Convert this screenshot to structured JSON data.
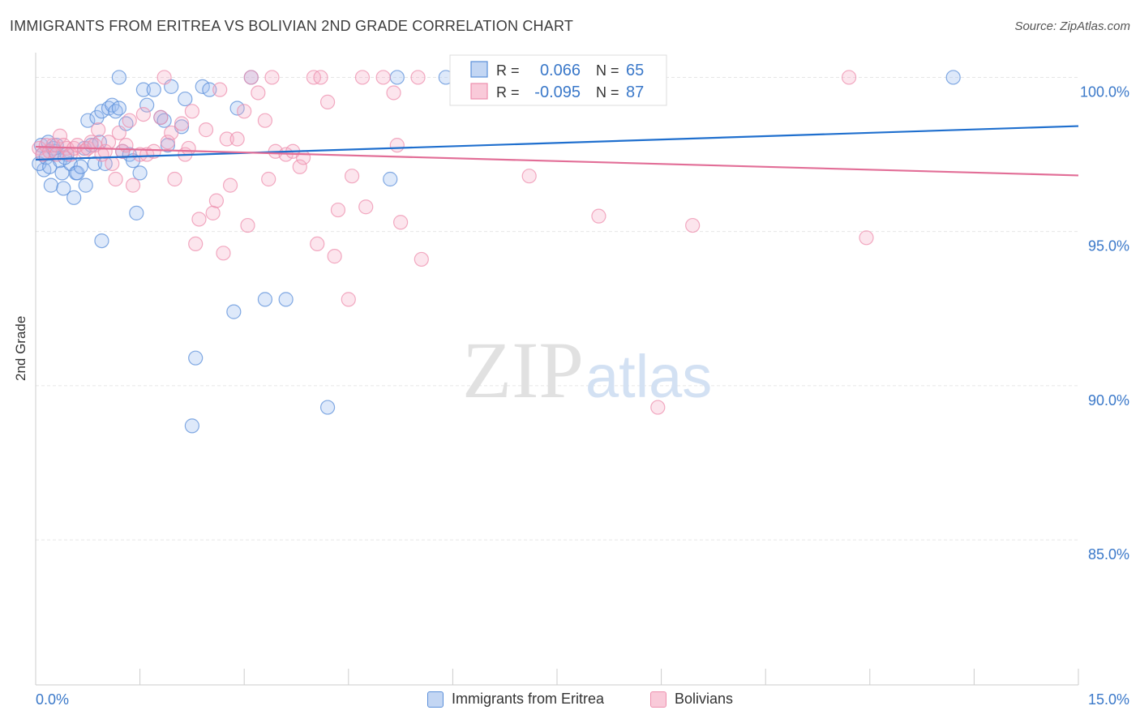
{
  "header": {
    "title": "IMMIGRANTS FROM ERITREA VS BOLIVIAN 2ND GRADE CORRELATION CHART",
    "source": "Source: ZipAtlas.com"
  },
  "watermark": {
    "zip": "ZIP",
    "atlas": "atlas"
  },
  "colors": {
    "blue": "#5b8fd9",
    "blue_line": "#1f6fce",
    "pink": "#ee8fae",
    "pink_line": "#e26e97",
    "axis_text": "#3a78c9"
  },
  "chart_data": {
    "type": "scatter",
    "xlabel": "",
    "ylabel": "2nd Grade",
    "xlim": [
      0,
      15
    ],
    "ylim": [
      80.3,
      100.8
    ],
    "x_ticks": [
      "0.0%",
      "15.0%"
    ],
    "y_ticks": [
      {
        "value": 100,
        "label": "100.0%"
      },
      {
        "value": 95,
        "label": "95.0%"
      },
      {
        "value": 90,
        "label": "90.0%"
      },
      {
        "value": 85,
        "label": "85.0%"
      }
    ],
    "grid": true,
    "legend_top": {
      "rows": [
        {
          "r_label": "R =",
          "r_value": "0.066",
          "n_label": "N =",
          "n_value": "65"
        },
        {
          "r_label": "R =",
          "r_value": "-0.095",
          "n_label": "N =",
          "n_value": "87"
        }
      ]
    },
    "series": [
      {
        "name": "Immigrants from Eritrea",
        "color": "#5b8fd9",
        "trend": {
          "x": [
            0,
            15
          ],
          "y": [
            97.33,
            98.42
          ]
        },
        "points": [
          [
            0.08,
            97.8
          ],
          [
            0.1,
            97.5
          ],
          [
            0.12,
            97.0
          ],
          [
            0.05,
            97.2
          ],
          [
            0.15,
            97.4
          ],
          [
            0.18,
            97.9
          ],
          [
            0.2,
            97.1
          ],
          [
            0.22,
            96.5
          ],
          [
            0.25,
            97.7
          ],
          [
            0.28,
            97.6
          ],
          [
            0.3,
            97.8
          ],
          [
            0.35,
            97.3
          ],
          [
            0.38,
            96.9
          ],
          [
            0.4,
            96.4
          ],
          [
            0.45,
            97.5
          ],
          [
            0.5,
            97.2
          ],
          [
            0.55,
            96.1
          ],
          [
            0.58,
            96.9
          ],
          [
            0.6,
            96.9
          ],
          [
            0.65,
            97.1
          ],
          [
            0.7,
            97.7
          ],
          [
            0.72,
            96.5
          ],
          [
            0.75,
            98.6
          ],
          [
            0.8,
            97.8
          ],
          [
            0.85,
            97.2
          ],
          [
            0.88,
            98.7
          ],
          [
            0.92,
            97.9
          ],
          [
            0.95,
            98.9
          ],
          [
            1.0,
            97.2
          ],
          [
            1.05,
            99.0
          ],
          [
            1.1,
            99.1
          ],
          [
            1.15,
            98.9
          ],
          [
            1.2,
            99.0
          ],
          [
            1.25,
            97.6
          ],
          [
            1.3,
            98.5
          ],
          [
            1.35,
            97.5
          ],
          [
            1.4,
            97.3
          ],
          [
            1.45,
            95.6
          ],
          [
            1.5,
            96.9
          ],
          [
            1.55,
            99.6
          ],
          [
            1.6,
            99.1
          ],
          [
            1.7,
            99.6
          ],
          [
            1.8,
            98.7
          ],
          [
            1.85,
            98.6
          ],
          [
            1.9,
            97.8
          ],
          [
            1.95,
            99.7
          ],
          [
            2.1,
            98.4
          ],
          [
            2.15,
            99.3
          ],
          [
            2.3,
            90.9
          ],
          [
            2.4,
            99.7
          ],
          [
            2.5,
            99.6
          ],
          [
            2.9,
            99.0
          ],
          [
            2.85,
            92.4
          ],
          [
            3.3,
            92.8
          ],
          [
            3.6,
            92.8
          ],
          [
            4.2,
            89.3
          ],
          [
            5.1,
            96.7
          ],
          [
            1.2,
            100.0
          ],
          [
            3.1,
            100.0
          ],
          [
            5.2,
            100.0
          ],
          [
            5.9,
            100.0
          ],
          [
            13.2,
            100.0
          ],
          [
            0.95,
            94.7
          ],
          [
            2.25,
            88.7
          ],
          [
            0.42,
            97.4
          ]
        ]
      },
      {
        "name": "Bolivians",
        "color": "#ee8fae",
        "trend": {
          "x": [
            0,
            15
          ],
          "y": [
            97.75,
            96.82
          ]
        },
        "points": [
          [
            0.05,
            97.7
          ],
          [
            0.1,
            97.5
          ],
          [
            0.15,
            97.8
          ],
          [
            0.2,
            97.6
          ],
          [
            0.25,
            97.8
          ],
          [
            0.3,
            97.5
          ],
          [
            0.35,
            98.1
          ],
          [
            0.4,
            97.8
          ],
          [
            0.45,
            97.7
          ],
          [
            0.5,
            97.5
          ],
          [
            0.55,
            97.7
          ],
          [
            0.6,
            97.8
          ],
          [
            0.7,
            97.6
          ],
          [
            0.75,
            97.7
          ],
          [
            0.8,
            97.9
          ],
          [
            0.85,
            97.8
          ],
          [
            0.9,
            98.3
          ],
          [
            0.95,
            97.5
          ],
          [
            1.0,
            97.6
          ],
          [
            1.05,
            97.9
          ],
          [
            1.1,
            97.2
          ],
          [
            1.15,
            96.7
          ],
          [
            1.2,
            98.2
          ],
          [
            1.25,
            97.6
          ],
          [
            1.3,
            97.8
          ],
          [
            1.35,
            98.6
          ],
          [
            1.4,
            96.5
          ],
          [
            1.5,
            97.5
          ],
          [
            1.55,
            98.8
          ],
          [
            1.6,
            97.5
          ],
          [
            1.7,
            97.6
          ],
          [
            1.8,
            98.7
          ],
          [
            1.9,
            97.9
          ],
          [
            1.95,
            98.2
          ],
          [
            2.0,
            96.7
          ],
          [
            2.1,
            98.5
          ],
          [
            2.15,
            97.5
          ],
          [
            2.2,
            97.7
          ],
          [
            2.25,
            98.9
          ],
          [
            2.3,
            94.6
          ],
          [
            2.35,
            95.4
          ],
          [
            2.45,
            98.3
          ],
          [
            2.55,
            95.6
          ],
          [
            2.6,
            96.0
          ],
          [
            2.65,
            99.6
          ],
          [
            2.7,
            94.3
          ],
          [
            2.8,
            96.5
          ],
          [
            2.75,
            98.0
          ],
          [
            2.9,
            98.0
          ],
          [
            3.0,
            98.9
          ],
          [
            3.05,
            95.2
          ],
          [
            3.1,
            100.0
          ],
          [
            3.2,
            99.5
          ],
          [
            3.3,
            98.6
          ],
          [
            3.35,
            96.7
          ],
          [
            3.4,
            100.0
          ],
          [
            3.45,
            97.6
          ],
          [
            3.6,
            97.5
          ],
          [
            3.7,
            97.6
          ],
          [
            3.8,
            97.1
          ],
          [
            3.85,
            97.4
          ],
          [
            4.0,
            100.0
          ],
          [
            4.05,
            94.6
          ],
          [
            4.1,
            100.0
          ],
          [
            4.2,
            99.2
          ],
          [
            4.3,
            94.2
          ],
          [
            4.35,
            95.7
          ],
          [
            4.5,
            92.8
          ],
          [
            4.55,
            96.8
          ],
          [
            4.7,
            100.0
          ],
          [
            4.75,
            95.8
          ],
          [
            5.0,
            100.0
          ],
          [
            5.15,
            99.5
          ],
          [
            5.2,
            97.8
          ],
          [
            5.25,
            95.3
          ],
          [
            5.5,
            100.0
          ],
          [
            5.55,
            94.1
          ],
          [
            6.6,
            100.0
          ],
          [
            7.1,
            96.8
          ],
          [
            8.2,
            100.0
          ],
          [
            8.5,
            99.8
          ],
          [
            8.95,
            89.3
          ],
          [
            9.45,
            95.2
          ],
          [
            11.7,
            100.0
          ],
          [
            11.95,
            94.8
          ],
          [
            1.85,
            100.0
          ],
          [
            8.1,
            95.5
          ]
        ]
      }
    ]
  }
}
